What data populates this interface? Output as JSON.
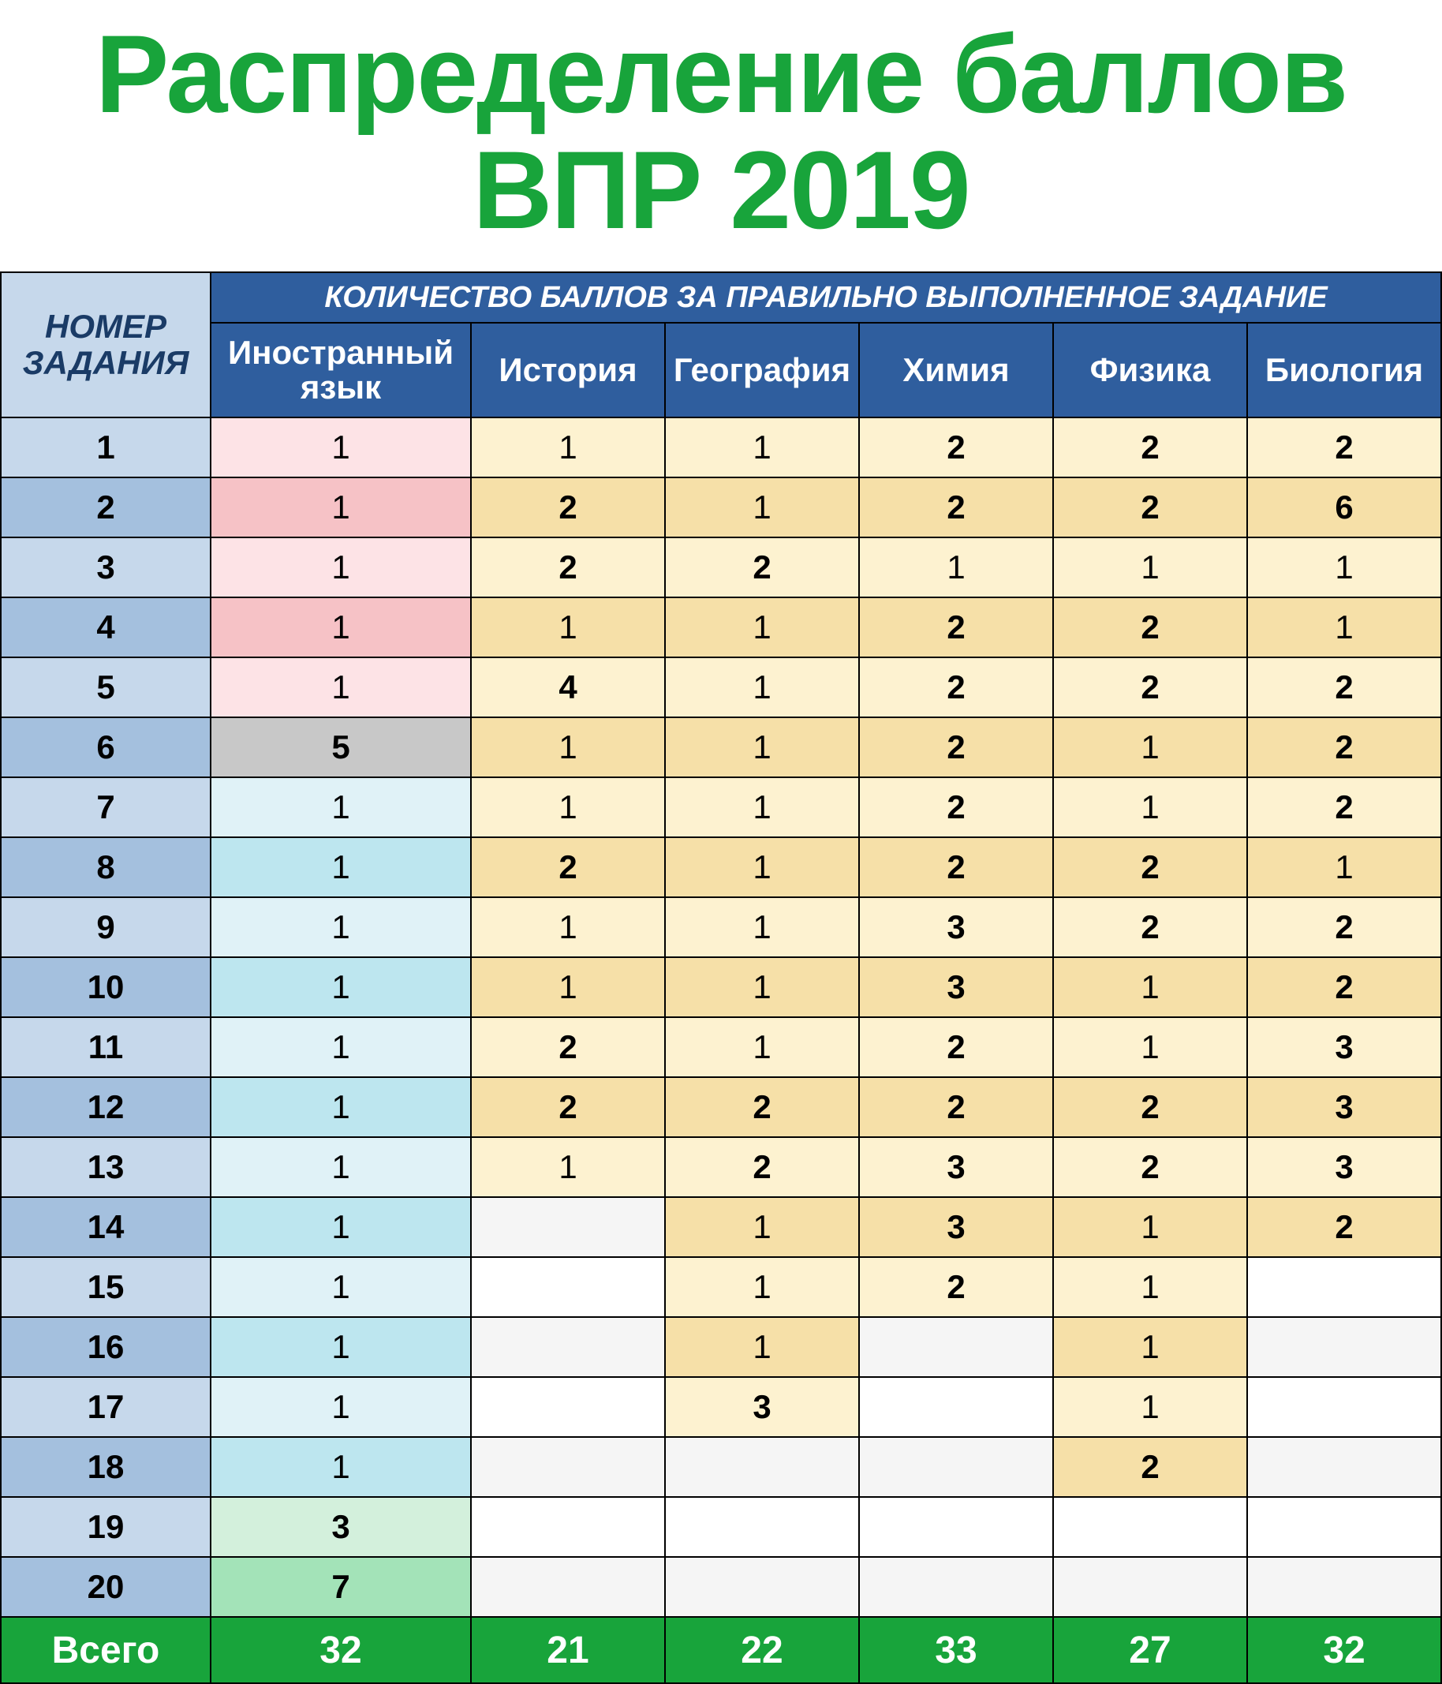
{
  "title": "Распределение баллов ВПР 2019",
  "header": {
    "task_label": "НОМЕР ЗАДАНИЯ",
    "span_label": "КОЛИЧЕСТВО БАЛЛОВ ЗА ПРАВИЛЬНО ВЫПОЛНЕННОЕ ЗАДАНИЕ",
    "subjects": [
      "Иностранный язык",
      "История",
      "География",
      "Химия",
      "Физика",
      "Биология"
    ]
  },
  "colors": {
    "title": "#18a43b",
    "header_blue": "#2f5e9e",
    "header_light": "#c6d8eb",
    "total_green": "#18a43b",
    "row_blue_light": "#c6d8eb",
    "row_blue_dark": "#a4c0de",
    "pink_light": "#fde3e6",
    "pink_dark": "#f6c2c6",
    "yellow_light": "#fdf2d0",
    "yellow_dark": "#f6e0a8",
    "gray": "#c8c8c8",
    "cyan_light": "#e0f2f7",
    "cyan_dark": "#bde6ef",
    "mint_light": "#d3f0dc",
    "mint_dark": "#a3e3b8",
    "white": "#ffffff",
    "off": "#f5f5f5"
  },
  "task_count": 20,
  "rows": [
    {
      "n": "1",
      "c": [
        {
          "v": "1",
          "bg": "pink_light",
          "b": 0
        },
        {
          "v": "1",
          "bg": "yellow_light",
          "b": 0
        },
        {
          "v": "1",
          "bg": "yellow_light",
          "b": 0
        },
        {
          "v": "2",
          "bg": "yellow_light",
          "b": 1
        },
        {
          "v": "2",
          "bg": "yellow_light",
          "b": 1
        },
        {
          "v": "2",
          "bg": "yellow_light",
          "b": 1
        }
      ]
    },
    {
      "n": "2",
      "c": [
        {
          "v": "1",
          "bg": "pink_dark",
          "b": 0
        },
        {
          "v": "2",
          "bg": "yellow_dark",
          "b": 1
        },
        {
          "v": "1",
          "bg": "yellow_dark",
          "b": 0
        },
        {
          "v": "2",
          "bg": "yellow_dark",
          "b": 1
        },
        {
          "v": "2",
          "bg": "yellow_dark",
          "b": 1
        },
        {
          "v": "6",
          "bg": "yellow_dark",
          "b": 1
        }
      ]
    },
    {
      "n": "3",
      "c": [
        {
          "v": "1",
          "bg": "pink_light",
          "b": 0
        },
        {
          "v": "2",
          "bg": "yellow_light",
          "b": 1
        },
        {
          "v": "2",
          "bg": "yellow_light",
          "b": 1
        },
        {
          "v": "1",
          "bg": "yellow_light",
          "b": 0
        },
        {
          "v": "1",
          "bg": "yellow_light",
          "b": 0
        },
        {
          "v": "1",
          "bg": "yellow_light",
          "b": 0
        }
      ]
    },
    {
      "n": "4",
      "c": [
        {
          "v": "1",
          "bg": "pink_dark",
          "b": 0
        },
        {
          "v": "1",
          "bg": "yellow_dark",
          "b": 0
        },
        {
          "v": "1",
          "bg": "yellow_dark",
          "b": 0
        },
        {
          "v": "2",
          "bg": "yellow_dark",
          "b": 1
        },
        {
          "v": "2",
          "bg": "yellow_dark",
          "b": 1
        },
        {
          "v": "1",
          "bg": "yellow_dark",
          "b": 0
        }
      ]
    },
    {
      "n": "5",
      "c": [
        {
          "v": "1",
          "bg": "pink_light",
          "b": 0
        },
        {
          "v": "4",
          "bg": "yellow_light",
          "b": 1
        },
        {
          "v": "1",
          "bg": "yellow_light",
          "b": 0
        },
        {
          "v": "2",
          "bg": "yellow_light",
          "b": 1
        },
        {
          "v": "2",
          "bg": "yellow_light",
          "b": 1
        },
        {
          "v": "2",
          "bg": "yellow_light",
          "b": 1
        }
      ]
    },
    {
      "n": "6",
      "c": [
        {
          "v": "5",
          "bg": "gray",
          "b": 1
        },
        {
          "v": "1",
          "bg": "yellow_dark",
          "b": 0
        },
        {
          "v": "1",
          "bg": "yellow_dark",
          "b": 0
        },
        {
          "v": "2",
          "bg": "yellow_dark",
          "b": 1
        },
        {
          "v": "1",
          "bg": "yellow_dark",
          "b": 0
        },
        {
          "v": "2",
          "bg": "yellow_dark",
          "b": 1
        }
      ]
    },
    {
      "n": "7",
      "c": [
        {
          "v": "1",
          "bg": "cyan_light",
          "b": 0
        },
        {
          "v": "1",
          "bg": "yellow_light",
          "b": 0
        },
        {
          "v": "1",
          "bg": "yellow_light",
          "b": 0
        },
        {
          "v": "2",
          "bg": "yellow_light",
          "b": 1
        },
        {
          "v": "1",
          "bg": "yellow_light",
          "b": 0
        },
        {
          "v": "2",
          "bg": "yellow_light",
          "b": 1
        }
      ]
    },
    {
      "n": "8",
      "c": [
        {
          "v": "1",
          "bg": "cyan_dark",
          "b": 0
        },
        {
          "v": "2",
          "bg": "yellow_dark",
          "b": 1
        },
        {
          "v": "1",
          "bg": "yellow_dark",
          "b": 0
        },
        {
          "v": "2",
          "bg": "yellow_dark",
          "b": 1
        },
        {
          "v": "2",
          "bg": "yellow_dark",
          "b": 1
        },
        {
          "v": "1",
          "bg": "yellow_dark",
          "b": 0
        }
      ]
    },
    {
      "n": "9",
      "c": [
        {
          "v": "1",
          "bg": "cyan_light",
          "b": 0
        },
        {
          "v": "1",
          "bg": "yellow_light",
          "b": 0
        },
        {
          "v": "1",
          "bg": "yellow_light",
          "b": 0
        },
        {
          "v": "3",
          "bg": "yellow_light",
          "b": 1
        },
        {
          "v": "2",
          "bg": "yellow_light",
          "b": 1
        },
        {
          "v": "2",
          "bg": "yellow_light",
          "b": 1
        }
      ]
    },
    {
      "n": "10",
      "c": [
        {
          "v": "1",
          "bg": "cyan_dark",
          "b": 0
        },
        {
          "v": "1",
          "bg": "yellow_dark",
          "b": 0
        },
        {
          "v": "1",
          "bg": "yellow_dark",
          "b": 0
        },
        {
          "v": "3",
          "bg": "yellow_dark",
          "b": 1
        },
        {
          "v": "1",
          "bg": "yellow_dark",
          "b": 0
        },
        {
          "v": "2",
          "bg": "yellow_dark",
          "b": 1
        }
      ]
    },
    {
      "n": "11",
      "c": [
        {
          "v": "1",
          "bg": "cyan_light",
          "b": 0
        },
        {
          "v": "2",
          "bg": "yellow_light",
          "b": 1
        },
        {
          "v": "1",
          "bg": "yellow_light",
          "b": 0
        },
        {
          "v": "2",
          "bg": "yellow_light",
          "b": 1
        },
        {
          "v": "1",
          "bg": "yellow_light",
          "b": 0
        },
        {
          "v": "3",
          "bg": "yellow_light",
          "b": 1
        }
      ]
    },
    {
      "n": "12",
      "c": [
        {
          "v": "1",
          "bg": "cyan_dark",
          "b": 0
        },
        {
          "v": "2",
          "bg": "yellow_dark",
          "b": 1
        },
        {
          "v": "2",
          "bg": "yellow_dark",
          "b": 1
        },
        {
          "v": "2",
          "bg": "yellow_dark",
          "b": 1
        },
        {
          "v": "2",
          "bg": "yellow_dark",
          "b": 1
        },
        {
          "v": "3",
          "bg": "yellow_dark",
          "b": 1
        }
      ]
    },
    {
      "n": "13",
      "c": [
        {
          "v": "1",
          "bg": "cyan_light",
          "b": 0
        },
        {
          "v": "1",
          "bg": "yellow_light",
          "b": 0
        },
        {
          "v": "2",
          "bg": "yellow_light",
          "b": 1
        },
        {
          "v": "3",
          "bg": "yellow_light",
          "b": 1
        },
        {
          "v": "2",
          "bg": "yellow_light",
          "b": 1
        },
        {
          "v": "3",
          "bg": "yellow_light",
          "b": 1
        }
      ]
    },
    {
      "n": "14",
      "c": [
        {
          "v": "1",
          "bg": "cyan_dark",
          "b": 0
        },
        {
          "v": "",
          "bg": "off",
          "b": 0
        },
        {
          "v": "1",
          "bg": "yellow_dark",
          "b": 0
        },
        {
          "v": "3",
          "bg": "yellow_dark",
          "b": 1
        },
        {
          "v": "1",
          "bg": "yellow_dark",
          "b": 0
        },
        {
          "v": "2",
          "bg": "yellow_dark",
          "b": 1
        }
      ]
    },
    {
      "n": "15",
      "c": [
        {
          "v": "1",
          "bg": "cyan_light",
          "b": 0
        },
        {
          "v": "",
          "bg": "white",
          "b": 0
        },
        {
          "v": "1",
          "bg": "yellow_light",
          "b": 0
        },
        {
          "v": "2",
          "bg": "yellow_light",
          "b": 1
        },
        {
          "v": "1",
          "bg": "yellow_light",
          "b": 0
        },
        {
          "v": "",
          "bg": "white",
          "b": 0
        }
      ]
    },
    {
      "n": "16",
      "c": [
        {
          "v": "1",
          "bg": "cyan_dark",
          "b": 0
        },
        {
          "v": "",
          "bg": "off",
          "b": 0
        },
        {
          "v": "1",
          "bg": "yellow_dark",
          "b": 0
        },
        {
          "v": "",
          "bg": "off",
          "b": 0
        },
        {
          "v": "1",
          "bg": "yellow_dark",
          "b": 0
        },
        {
          "v": "",
          "bg": "off",
          "b": 0
        }
      ]
    },
    {
      "n": "17",
      "c": [
        {
          "v": "1",
          "bg": "cyan_light",
          "b": 0
        },
        {
          "v": "",
          "bg": "white",
          "b": 0
        },
        {
          "v": "3",
          "bg": "yellow_light",
          "b": 1
        },
        {
          "v": "",
          "bg": "white",
          "b": 0
        },
        {
          "v": "1",
          "bg": "yellow_light",
          "b": 0
        },
        {
          "v": "",
          "bg": "white",
          "b": 0
        }
      ]
    },
    {
      "n": "18",
      "c": [
        {
          "v": "1",
          "bg": "cyan_dark",
          "b": 0
        },
        {
          "v": "",
          "bg": "off",
          "b": 0
        },
        {
          "v": "",
          "bg": "off",
          "b": 0
        },
        {
          "v": "",
          "bg": "off",
          "b": 0
        },
        {
          "v": "2",
          "bg": "yellow_dark",
          "b": 1
        },
        {
          "v": "",
          "bg": "off",
          "b": 0
        }
      ]
    },
    {
      "n": "19",
      "c": [
        {
          "v": "3",
          "bg": "mint_light",
          "b": 1
        },
        {
          "v": "",
          "bg": "white",
          "b": 0
        },
        {
          "v": "",
          "bg": "white",
          "b": 0
        },
        {
          "v": "",
          "bg": "white",
          "b": 0
        },
        {
          "v": "",
          "bg": "white",
          "b": 0
        },
        {
          "v": "",
          "bg": "white",
          "b": 0
        }
      ]
    },
    {
      "n": "20",
      "c": [
        {
          "v": "7",
          "bg": "mint_dark",
          "b": 1
        },
        {
          "v": "",
          "bg": "off",
          "b": 0
        },
        {
          "v": "",
          "bg": "off",
          "b": 0
        },
        {
          "v": "",
          "bg": "off",
          "b": 0
        },
        {
          "v": "",
          "bg": "off",
          "b": 0
        },
        {
          "v": "",
          "bg": "off",
          "b": 0
        }
      ]
    }
  ],
  "total": {
    "label": "Всего",
    "values": [
      "32",
      "21",
      "22",
      "33",
      "27",
      "32"
    ]
  }
}
